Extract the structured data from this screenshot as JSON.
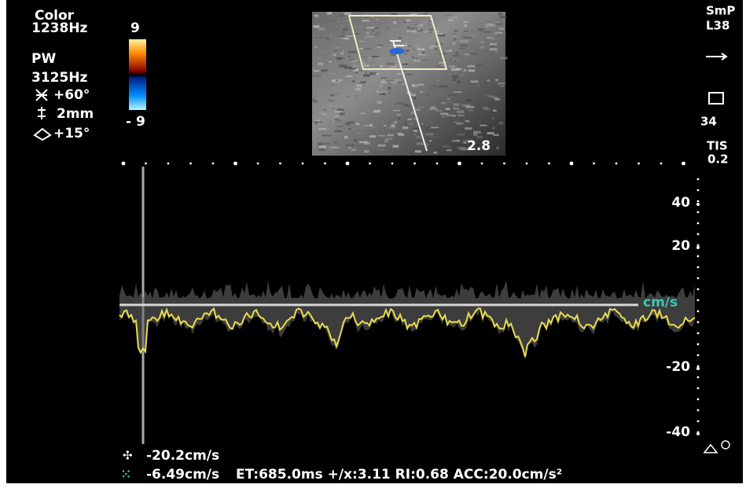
{
  "left_panel": {
    "color_label": "Color",
    "color_prf": "1238Hz",
    "pw_label": "PW",
    "pw_prf": "3125Hz",
    "angle": "+60°",
    "gate": "2mm",
    "steer": "+15°"
  },
  "color_bar": {
    "max": "9",
    "min": "- 9"
  },
  "right_panel": {
    "preset": "SmP",
    "probe": "L38",
    "gain": "34",
    "tis_label": "TIS",
    "tis_value": "0.2"
  },
  "image": {
    "depth": "2.8"
  },
  "scale": {
    "ticks": [
      "40",
      "20",
      "-20",
      "-40"
    ],
    "unit": "cm/s"
  },
  "measurements": {
    "cursor1": "-20.2cm/s",
    "cursor2": "-6.49cm/s",
    "details": "ET:685.0ms +/x:3.11 RI:0.68 ACC:20.0cm/s²"
  }
}
